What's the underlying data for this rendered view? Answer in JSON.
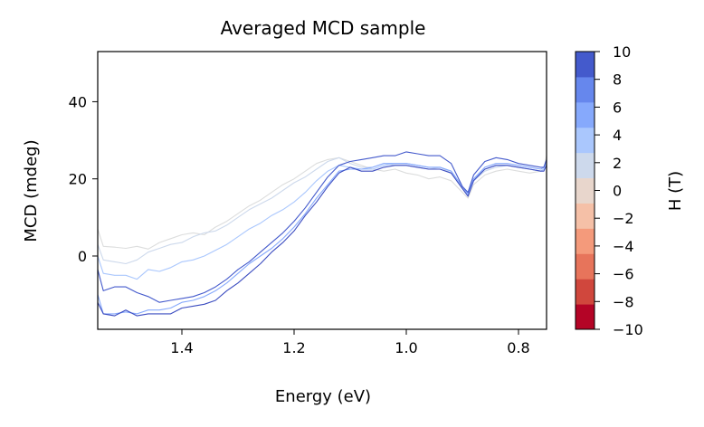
{
  "chart_data": {
    "type": "line",
    "title": "Averaged MCD sample",
    "xlabel": "Energy (eV)",
    "ylabel": "MCD (mdeg)",
    "x_reversed": true,
    "xlim": [
      1.55,
      0.75
    ],
    "ylim": [
      -19,
      53
    ],
    "xticks": [
      1.4,
      1.2,
      1.0,
      0.8
    ],
    "xtick_labels": [
      "1.4",
      "1.2",
      "1.0",
      "0.8"
    ],
    "yticks": [
      0,
      20,
      40
    ],
    "ytick_labels": [
      "0",
      "20",
      "40"
    ],
    "grid": false,
    "legend": "none",
    "colorbar": {
      "label": "H (T)",
      "colormap": "coolwarm",
      "levels": [
        -10,
        -8,
        -6,
        -4,
        -2,
        0,
        2,
        4,
        6,
        8,
        10
      ],
      "tick_labels": [
        "−10",
        "−8",
        "−6",
        "−4",
        "−2",
        "0",
        "2",
        "4",
        "6",
        "8",
        "10"
      ],
      "band_colors": [
        "#b40426",
        "#d0473d",
        "#e7745b",
        "#f49a7b",
        "#f5c0a7",
        "#e8d6cc",
        "#cdd9ec",
        "#aac7fd",
        "#86a9fc",
        "#6687ed",
        "#445acc"
      ]
    },
    "series": [
      {
        "field": 1,
        "color": "#dcdddd",
        "x": [
          1.55,
          1.54,
          1.52,
          1.5,
          1.48,
          1.46,
          1.44,
          1.42,
          1.4,
          1.38,
          1.36,
          1.34,
          1.32,
          1.3,
          1.28,
          1.26,
          1.24,
          1.22,
          1.2,
          1.18,
          1.16,
          1.14,
          1.12,
          1.1,
          1.08,
          1.06,
          1.04,
          1.02,
          1.0,
          0.98,
          0.96,
          0.94,
          0.92,
          0.9,
          0.89,
          0.88,
          0.86,
          0.84,
          0.82,
          0.8,
          0.78,
          0.76,
          0.755,
          0.75
        ],
        "y": [
          7,
          2.5,
          2.3,
          2.0,
          2.5,
          1.8,
          3.5,
          4.5,
          5.5,
          6,
          5.5,
          7.5,
          9,
          11,
          13,
          14.5,
          16.5,
          18.5,
          20,
          22,
          24,
          25,
          25.5,
          24.5,
          23.5,
          22.5,
          22,
          22.5,
          21.5,
          21,
          20,
          20.5,
          19.5,
          16.5,
          15,
          18.5,
          21,
          22,
          22.5,
          22,
          21.5,
          22,
          22.5,
          26
        ]
      },
      {
        "field": 3,
        "color": "#cdd9ec",
        "x": [
          1.55,
          1.54,
          1.52,
          1.5,
          1.48,
          1.46,
          1.44,
          1.42,
          1.4,
          1.38,
          1.36,
          1.34,
          1.32,
          1.3,
          1.28,
          1.26,
          1.24,
          1.22,
          1.2,
          1.18,
          1.16,
          1.14,
          1.12,
          1.1,
          1.08,
          1.06,
          1.04,
          1.02,
          1.0,
          0.98,
          0.96,
          0.94,
          0.92,
          0.9,
          0.89,
          0.88,
          0.86,
          0.84,
          0.82,
          0.8,
          0.78,
          0.76,
          0.755,
          0.75
        ],
        "y": [
          3,
          -1,
          -1.5,
          -2,
          -1,
          1,
          2,
          3,
          3.5,
          5,
          6,
          6.5,
          8,
          10,
          12,
          13.5,
          15,
          17,
          19,
          20.5,
          22.5,
          24.5,
          25.5,
          24,
          23,
          23,
          24,
          23.5,
          23.5,
          23,
          22.5,
          23,
          21.5,
          17.5,
          16,
          19.5,
          22,
          23,
          23.5,
          23,
          22.5,
          22,
          22.5,
          25
        ]
      },
      {
        "field": 5,
        "color": "#aac7fd",
        "x": [
          1.55,
          1.54,
          1.52,
          1.5,
          1.48,
          1.46,
          1.44,
          1.42,
          1.4,
          1.38,
          1.36,
          1.34,
          1.32,
          1.3,
          1.28,
          1.26,
          1.24,
          1.22,
          1.2,
          1.18,
          1.16,
          1.14,
          1.12,
          1.1,
          1.08,
          1.06,
          1.04,
          1.02,
          1.0,
          0.98,
          0.96,
          0.94,
          0.92,
          0.9,
          0.89,
          0.88,
          0.86,
          0.84,
          0.82,
          0.8,
          0.78,
          0.76,
          0.755,
          0.75
        ],
        "y": [
          0,
          -4.5,
          -5,
          -5,
          -6,
          -3.5,
          -4,
          -3,
          -1.5,
          -1,
          0,
          1.5,
          3,
          5,
          7,
          8.5,
          10.5,
          12,
          14,
          16.5,
          19.5,
          22,
          23.5,
          23,
          22.5,
          22.5,
          23.5,
          24,
          24,
          23.5,
          23,
          23,
          22,
          18,
          16.5,
          20,
          22.5,
          23.5,
          23.5,
          23,
          22.5,
          22,
          22.5,
          24.5
        ]
      },
      {
        "field": 7,
        "color": "#86a9fc",
        "x": [
          1.55,
          1.54,
          1.52,
          1.5,
          1.48,
          1.46,
          1.44,
          1.42,
          1.4,
          1.38,
          1.36,
          1.34,
          1.32,
          1.3,
          1.28,
          1.26,
          1.24,
          1.22,
          1.2,
          1.18,
          1.16,
          1.14,
          1.12,
          1.1,
          1.08,
          1.06,
          1.04,
          1.02,
          1.0,
          0.98,
          0.96,
          0.94,
          0.92,
          0.9,
          0.89,
          0.88,
          0.86,
          0.84,
          0.82,
          0.8,
          0.78,
          0.76,
          0.755,
          0.75
        ],
        "y": [
          -10,
          -15,
          -15,
          -14.5,
          -15,
          -14,
          -14,
          -13.5,
          -12,
          -11.5,
          -10.5,
          -9,
          -7,
          -4.5,
          -2,
          0,
          2,
          4.5,
          7.5,
          11,
          15,
          18.5,
          22,
          22.5,
          22.5,
          23,
          24,
          24,
          24,
          23.5,
          23,
          23,
          22,
          18,
          16,
          20,
          23,
          24,
          24,
          23.5,
          23,
          22.5,
          23,
          24
        ]
      },
      {
        "field": 9,
        "color": "#445acc",
        "x": [
          1.55,
          1.54,
          1.52,
          1.5,
          1.48,
          1.46,
          1.44,
          1.42,
          1.4,
          1.38,
          1.36,
          1.34,
          1.32,
          1.3,
          1.28,
          1.26,
          1.24,
          1.22,
          1.2,
          1.18,
          1.16,
          1.14,
          1.12,
          1.1,
          1.08,
          1.06,
          1.04,
          1.02,
          1.0,
          0.98,
          0.96,
          0.94,
          0.92,
          0.9,
          0.89,
          0.88,
          0.86,
          0.84,
          0.82,
          0.8,
          0.78,
          0.76,
          0.755,
          0.75
        ],
        "y": [
          -3.5,
          -9,
          -8,
          -8,
          -9.5,
          -10.5,
          -12,
          -11.5,
          -11,
          -10.5,
          -9.5,
          -8,
          -6,
          -3.5,
          -1.5,
          1,
          3.5,
          6,
          9,
          12.5,
          16.5,
          20.5,
          23.5,
          24.5,
          25,
          25.5,
          26,
          26,
          27,
          26.5,
          26,
          26,
          24,
          18,
          16.5,
          21,
          24.5,
          25.5,
          25,
          24,
          23.5,
          23,
          23,
          25
        ]
      },
      {
        "field": 10,
        "color": "#3b4cc0",
        "x": [
          1.55,
          1.54,
          1.52,
          1.5,
          1.48,
          1.46,
          1.44,
          1.42,
          1.4,
          1.38,
          1.36,
          1.34,
          1.32,
          1.3,
          1.28,
          1.26,
          1.24,
          1.22,
          1.2,
          1.18,
          1.16,
          1.14,
          1.12,
          1.1,
          1.08,
          1.06,
          1.04,
          1.02,
          1.0,
          0.98,
          0.96,
          0.94,
          0.92,
          0.9,
          0.89,
          0.88,
          0.86,
          0.84,
          0.82,
          0.8,
          0.78,
          0.76,
          0.755,
          0.75
        ],
        "y": [
          -12,
          -15,
          -15.5,
          -14,
          -15.5,
          -15,
          -15,
          -15,
          -13.5,
          -13,
          -12.5,
          -11.5,
          -9,
          -7,
          -4.5,
          -2,
          1,
          3.5,
          6.5,
          10.5,
          14,
          18,
          21.5,
          23,
          22,
          22,
          23,
          23.5,
          23.5,
          23,
          22.5,
          22.5,
          21.5,
          17.5,
          15.5,
          19.5,
          22.5,
          23.5,
          23.5,
          23,
          22.5,
          22,
          22,
          23.5
        ]
      }
    ]
  }
}
